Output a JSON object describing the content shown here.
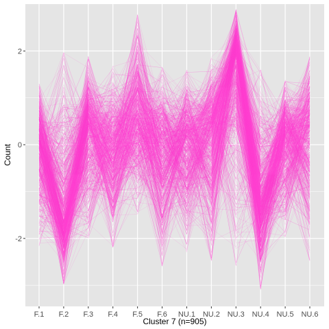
{
  "chart_data": {
    "type": "line",
    "xlabel": "Cluster 7 (n=905)",
    "ylabel": "Count",
    "categories": [
      "F.1",
      "F.2",
      "F.3",
      "F.4",
      "F.5",
      "F.6",
      "NU.1",
      "NU.2",
      "NU.3",
      "NU.4",
      "NU.5",
      "NU.6"
    ],
    "y_ticks": [
      -2,
      0,
      2
    ],
    "y_tick_labels": [
      "-2",
      "0",
      "2"
    ],
    "ylim": [
      -3.45,
      3.0
    ],
    "grid": true,
    "legend": "none",
    "series_count": 905,
    "series_color": "#FF3FD0",
    "panel_background": "#E5E5E5",
    "grid_color": "#FFFFFF",
    "profile_summary": {
      "center": [
        0.0,
        -1.6,
        0.35,
        -0.15,
        0.45,
        -0.05,
        0.1,
        0.3,
        1.9,
        -1.2,
        0.15,
        0.35
      ],
      "upper": [
        1.3,
        2.0,
        1.9,
        1.7,
        2.8,
        1.7,
        1.6,
        1.9,
        2.9,
        1.6,
        1.4,
        1.9
      ],
      "lower": [
        -2.2,
        -3.0,
        -2.0,
        -2.2,
        -1.5,
        -2.6,
        -2.3,
        -2.5,
        -2.6,
        -3.1,
        -2.0,
        -2.5
      ]
    }
  }
}
